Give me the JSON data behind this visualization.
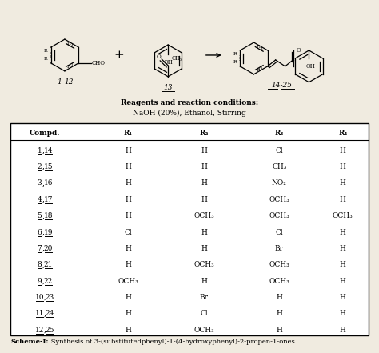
{
  "reagents_bold": "Reagents and reaction conditions:",
  "reagents_normal": "NaOH (20%), Ethanol, Stirring",
  "table_headers": [
    "Compd.",
    "R₁",
    "R₂",
    "R₃",
    "R₄"
  ],
  "table_data": [
    [
      "1, 14",
      "H",
      "H",
      "Cl",
      "H"
    ],
    [
      "2, 15",
      "H",
      "H",
      "CH₃",
      "H"
    ],
    [
      "3, 16",
      "H",
      "H",
      "NO₂",
      "H"
    ],
    [
      "4, 17",
      "H",
      "H",
      "OCH₃",
      "H"
    ],
    [
      "5, 18",
      "H",
      "OCH₃",
      "OCH₃",
      "OCH₃"
    ],
    [
      "6, 19",
      "Cl",
      "H",
      "Cl",
      "H"
    ],
    [
      "7, 20",
      "H",
      "H",
      "Br",
      "H"
    ],
    [
      "8, 21",
      "H",
      "OCH₃",
      "OCH₃",
      "H"
    ],
    [
      "9, 22",
      "OCH₃",
      "H",
      "OCH₃",
      "H"
    ],
    [
      "10, 23",
      "H",
      "Br",
      "H",
      "H"
    ],
    [
      "11, 24",
      "H",
      "Cl",
      "H",
      "H"
    ],
    [
      "12, 25",
      "H",
      "OCH₃",
      "H",
      "H"
    ]
  ],
  "bg_color": "#f0ebe0",
  "text_color": "#000000"
}
